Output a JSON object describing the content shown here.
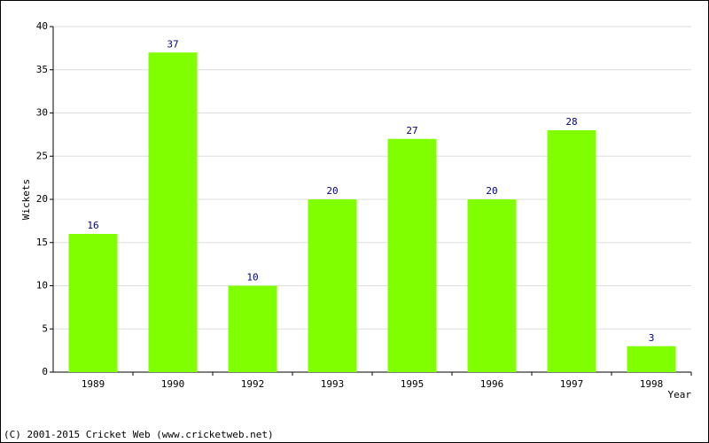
{
  "chart_data": {
    "type": "bar",
    "categories": [
      "1989",
      "1990",
      "1992",
      "1993",
      "1995",
      "1996",
      "1997",
      "1998"
    ],
    "values": [
      16,
      37,
      10,
      20,
      27,
      20,
      28,
      3
    ],
    "color": "#80ff00",
    "label_color": "#000080",
    "ylim": [
      0,
      40
    ],
    "yticks": [
      0,
      5,
      10,
      15,
      20,
      25,
      30,
      35,
      40
    ],
    "grid": true,
    "ylabel": "Wickets",
    "xlabel": "Year",
    "footer": "(C) 2001-2015 Cricket Web (www.cricketweb.net)"
  }
}
